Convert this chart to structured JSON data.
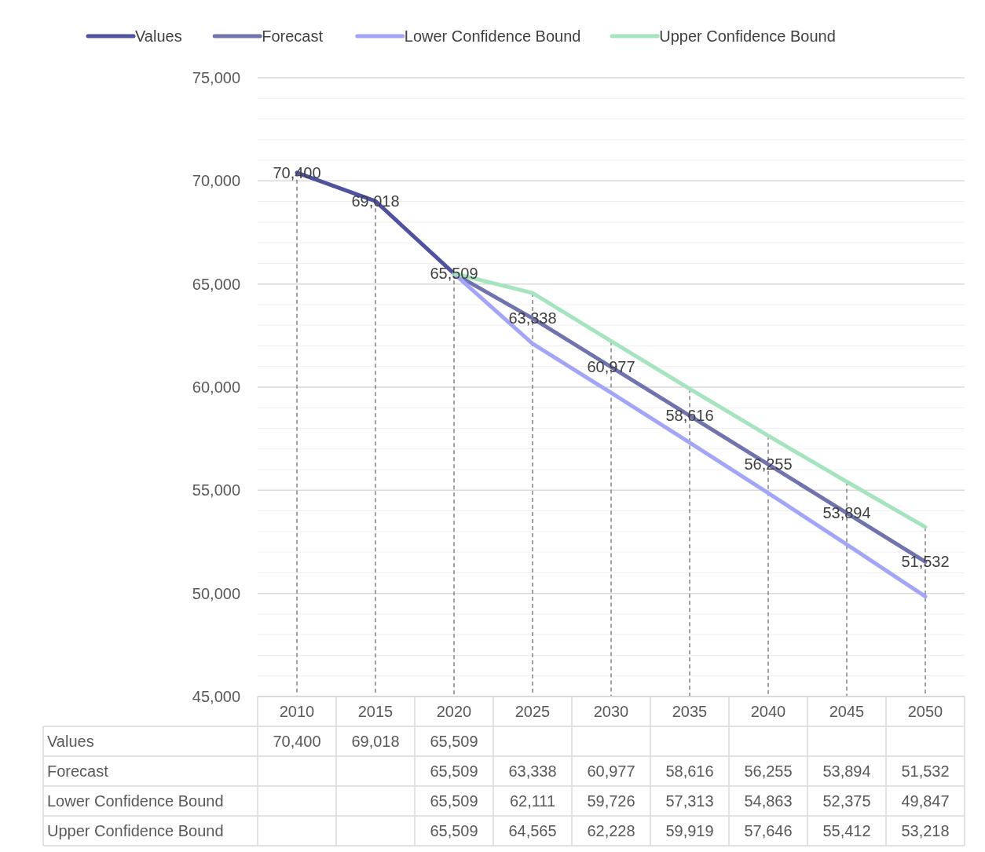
{
  "chart_data": {
    "type": "line",
    "categories": [
      "2010",
      "2015",
      "2020",
      "2025",
      "2030",
      "2035",
      "2040",
      "2045",
      "2050"
    ],
    "series": [
      {
        "name": "Values",
        "color": "#4f529e",
        "data_labels": true,
        "values": [
          70400,
          69018,
          65509,
          null,
          null,
          null,
          null,
          null,
          null
        ],
        "value_labels": [
          "70,400",
          "69,018",
          "65,509",
          null,
          null,
          null,
          null,
          null,
          null
        ]
      },
      {
        "name": "Forecast",
        "color": "#7173ae",
        "data_labels": true,
        "values": [
          null,
          null,
          65509,
          63338,
          60977,
          58616,
          56255,
          53894,
          51532
        ],
        "value_labels": [
          null,
          null,
          "65,509",
          "63,338",
          "60,977",
          "58,616",
          "56,255",
          "53,894",
          "51,532"
        ]
      },
      {
        "name": "Lower Confidence Bound",
        "color": "#a3a6f6",
        "values": [
          null,
          null,
          65509,
          62111,
          59726,
          57313,
          54863,
          52375,
          49847
        ],
        "value_labels": [
          null,
          null,
          "65,509",
          "62,111",
          "59,726",
          "57,313",
          "54,863",
          "52,375",
          "49,847"
        ]
      },
      {
        "name": "Upper Confidence Bound",
        "color": "#a5e4bf",
        "values": [
          null,
          null,
          65509,
          64565,
          62228,
          59919,
          57646,
          55412,
          53218
        ],
        "value_labels": [
          null,
          null,
          "65,509",
          "64,565",
          "62,228",
          "59,919",
          "57,646",
          "55,412",
          "53,218"
        ]
      }
    ],
    "ylim": [
      45000,
      75000
    ],
    "yticks": [
      {
        "value": 45000,
        "label": "45,000"
      },
      {
        "value": 46000,
        "label": null
      },
      {
        "value": 47000,
        "label": null
      },
      {
        "value": 48000,
        "label": null
      },
      {
        "value": 49000,
        "label": null
      },
      {
        "value": 50000,
        "label": "50,000"
      },
      {
        "value": 51000,
        "label": null
      },
      {
        "value": 52000,
        "label": null
      },
      {
        "value": 53000,
        "label": null
      },
      {
        "value": 54000,
        "label": null
      },
      {
        "value": 55000,
        "label": "55,000"
      },
      {
        "value": 56000,
        "label": null
      },
      {
        "value": 57000,
        "label": null
      },
      {
        "value": 58000,
        "label": null
      },
      {
        "value": 59000,
        "label": null
      },
      {
        "value": 60000,
        "label": "60,000"
      },
      {
        "value": 61000,
        "label": null
      },
      {
        "value": 62000,
        "label": null
      },
      {
        "value": 63000,
        "label": null
      },
      {
        "value": 64000,
        "label": null
      },
      {
        "value": 65000,
        "label": "65,000"
      },
      {
        "value": 66000,
        "label": null
      },
      {
        "value": 67000,
        "label": null
      },
      {
        "value": 68000,
        "label": null
      },
      {
        "value": 69000,
        "label": null
      },
      {
        "value": 70000,
        "label": "70,000"
      },
      {
        "value": 71000,
        "label": null
      },
      {
        "value": 72000,
        "label": null
      },
      {
        "value": 73000,
        "label": null
      },
      {
        "value": 74000,
        "label": null
      },
      {
        "value": 75000,
        "label": "75,000"
      }
    ],
    "grid": "y",
    "legend": "top",
    "line_style": "solid",
    "ref_lines": [
      {
        "axis": "x",
        "value": "2010",
        "color": "#707070",
        "line_style": "dashed"
      },
      {
        "axis": "x",
        "value": "2015",
        "color": "#707070",
        "line_style": "dashed"
      },
      {
        "axis": "x",
        "value": "2020",
        "color": "#707070",
        "line_style": "dashed"
      },
      {
        "axis": "x",
        "value": "2025",
        "color": "#707070",
        "line_style": "dashed"
      },
      {
        "axis": "x",
        "value": "2030",
        "color": "#707070",
        "line_style": "dashed"
      },
      {
        "axis": "x",
        "value": "2035",
        "color": "#707070",
        "line_style": "dashed"
      },
      {
        "axis": "x",
        "value": "2040",
        "color": "#707070",
        "line_style": "dashed"
      },
      {
        "axis": "x",
        "value": "2045",
        "color": "#707070",
        "line_style": "dashed"
      },
      {
        "axis": "x",
        "value": "2050",
        "color": "#707070",
        "line_style": "dashed"
      }
    ]
  }
}
